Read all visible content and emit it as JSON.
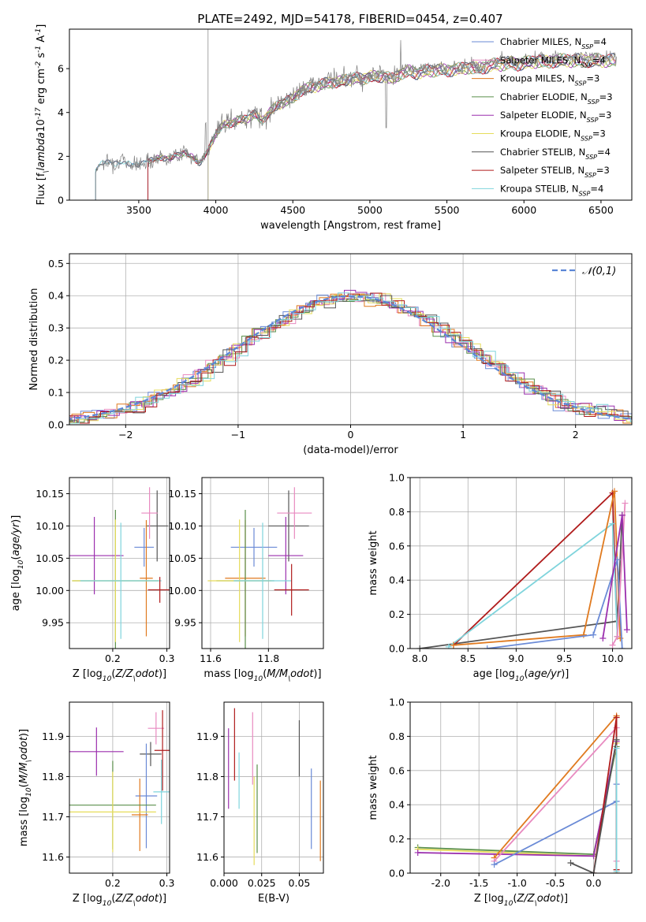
{
  "title": "PLATE=2492, MJD=54178, FIBERID=0454, z=0.407",
  "chart_data": [
    {
      "type": "line",
      "panel": "spectrum",
      "title": "PLATE=2492, MJD=54178, FIBERID=0454, z=0.407",
      "xlabel": "wavelength [Angstrom, rest frame]",
      "ylabel": "Flux [f$_\\lambda$10$^{-17}$ erg cm$^{-2}$ s$^{-1}$ A$^{-1}$]",
      "xlim": [
        3050,
        6700
      ],
      "ylim": [
        0,
        7.8
      ],
      "xticks": [
        3500,
        4000,
        4500,
        5000,
        5500,
        6000,
        6500
      ],
      "yticks": [
        0,
        2,
        4,
        6
      ],
      "legend_position": "upper-right",
      "series": [
        {
          "name": "Chabrier MILES, N$_{SSP}$=4",
          "color": "#6a8ad6"
        },
        {
          "name": "Salpeter MILES, N$_{SSP}$=4",
          "color": "#e88ac0"
        },
        {
          "name": "Kroupa MILES, N$_{SSP}$=3",
          "color": "#e07a1f"
        },
        {
          "name": "Chabrier ELODIE, N$_{SSP}$=3",
          "color": "#5a8f4a"
        },
        {
          "name": "Salpeter ELODIE, N$_{SSP}$=3",
          "color": "#9b2fae"
        },
        {
          "name": "Kroupa ELODIE, N$_{SSP}$=3",
          "color": "#e6dc5a"
        },
        {
          "name": "Chabrier STELIB, N$_{SSP}$=4",
          "color": "#555555"
        },
        {
          "name": "Salpeter STELIB, N$_{SSP}$=3",
          "color": "#b01c1c"
        },
        {
          "name": "Kroupa STELIB, N$_{SSP}$=4",
          "color": "#7fd4dc"
        }
      ],
      "data_curve": {
        "x": [
          3220,
          3240,
          3260,
          3300,
          3350,
          3400,
          3450,
          3500,
          3550,
          3600,
          3650,
          3700,
          3750,
          3800,
          3850,
          3900,
          3950,
          4000,
          4050,
          4100,
          4150,
          4200,
          4250,
          4300,
          4350,
          4400,
          4450,
          4500,
          4550,
          4600,
          4650,
          4700,
          4750,
          4800,
          4850,
          4900,
          4950,
          5000,
          5050,
          5100,
          5150,
          5200,
          5250,
          5300,
          5350,
          5400,
          5450,
          5500,
          5550,
          5600,
          5650,
          5700,
          5750,
          5800,
          5850,
          5900,
          5950,
          6000,
          6050,
          6100,
          6150,
          6200,
          6250,
          6300,
          6350,
          6400,
          6450,
          6500,
          6550,
          6600
        ],
        "y": [
          1.4,
          1.6,
          1.7,
          1.75,
          1.7,
          1.8,
          1.7,
          1.6,
          1.8,
          1.9,
          2.0,
          1.9,
          2.1,
          2.2,
          2.0,
          1.7,
          2.3,
          3.1,
          3.5,
          3.6,
          3.7,
          3.8,
          4.0,
          3.7,
          4.1,
          4.4,
          4.6,
          4.7,
          5.1,
          5.2,
          5.3,
          5.4,
          5.5,
          5.5,
          5.6,
          5.7,
          5.6,
          5.8,
          5.7,
          5.8,
          5.6,
          5.9,
          6.0,
          5.9,
          6.0,
          6.0,
          6.1,
          6.0,
          6.1,
          6.1,
          6.2,
          6.1,
          6.2,
          6.3,
          6.3,
          6.4,
          6.3,
          6.4,
          6.4,
          6.5,
          6.4,
          6.5,
          6.5,
          6.5,
          6.5,
          6.5,
          6.5,
          6.5,
          6.5,
          6.5
        ]
      }
    },
    {
      "type": "line",
      "panel": "residual-histogram",
      "xlabel": "(data-model)/error",
      "ylabel": "Normed distribution",
      "xlim": [
        -2.5,
        2.5
      ],
      "ylim": [
        0,
        0.53
      ],
      "xticks": [
        -2,
        -1,
        0,
        1,
        2
      ],
      "yticks": [
        0.0,
        0.1,
        0.2,
        0.3,
        0.4,
        0.5
      ],
      "legend": [
        "$\\mathcal{N}(0,1)$"
      ],
      "legend_position": "upper-right",
      "bin_width": 0.1,
      "reference_curve": "normal, mean 0, sigma 1"
    },
    {
      "type": "scatter",
      "panel": "age-vs-Z",
      "xlabel": "Z [log$_{10}$($Z/Z_\\odot$)]",
      "ylabel": "age  [log$_{10}$($age/yr$)]",
      "xlim": [
        0.12,
        0.305
      ],
      "ylim": [
        9.91,
        10.175
      ],
      "xticks": [
        0.2,
        0.3
      ],
      "yticks": [
        9.95,
        10.0,
        10.05,
        10.1,
        10.15
      ],
      "points": [
        {
          "color": "#555555",
          "x": 0.282,
          "y": 10.1,
          "xerr": 0.02,
          "yerr": 0.055
        },
        {
          "color": "#e88ac0",
          "x": 0.268,
          "y": 10.12,
          "xerr": 0.015,
          "yerr": 0.04
        },
        {
          "color": "#6a8ad6",
          "x": 0.258,
          "y": 10.067,
          "xerr": 0.018,
          "yerr": 0.03
        },
        {
          "color": "#9b2fae",
          "x": 0.166,
          "y": 10.054,
          "xerr": 0.054,
          "yerr": 0.06
        },
        {
          "color": "#e07a1f",
          "x": 0.262,
          "y": 10.019,
          "xerr": 0.012,
          "yerr": 0.09
        },
        {
          "color": "#5a8f4a",
          "x": 0.205,
          "y": 10.015,
          "xerr": 0.08,
          "yerr": 0.11
        },
        {
          "color": "#e6dc5a",
          "x": 0.205,
          "y": 10.015,
          "xerr": 0.08,
          "yerr": 0.095
        },
        {
          "color": "#7fd4dc",
          "x": 0.215,
          "y": 10.015,
          "xerr": 0.075,
          "yerr": 0.09
        },
        {
          "color": "#b01c1c",
          "x": 0.287,
          "y": 10.001,
          "xerr": 0.022,
          "yerr": 0.02
        }
      ]
    },
    {
      "type": "scatter",
      "panel": "age-vs-mass",
      "xlabel": "mass [log$_{10}$($M/M_\\odot$)]",
      "xlim": [
        11.57,
        11.99
      ],
      "ylim": [
        9.91,
        10.175
      ],
      "xticks": [
        11.6,
        11.8
      ],
      "yticks": [
        9.95,
        10.0,
        10.05,
        10.1,
        10.15
      ],
      "points": [
        {
          "color": "#555555",
          "x": 11.87,
          "y": 10.1,
          "xerr": 0.07,
          "yerr": 0.055
        },
        {
          "color": "#e88ac0",
          "x": 11.89,
          "y": 10.12,
          "xerr": 0.06,
          "yerr": 0.04
        },
        {
          "color": "#6a8ad6",
          "x": 11.75,
          "y": 10.067,
          "xerr": 0.08,
          "yerr": 0.03
        },
        {
          "color": "#9b2fae",
          "x": 11.86,
          "y": 10.054,
          "xerr": 0.06,
          "yerr": 0.06
        },
        {
          "color": "#e07a1f",
          "x": 11.72,
          "y": 10.019,
          "xerr": 0.07,
          "yerr": 0.09
        },
        {
          "color": "#5a8f4a",
          "x": 11.72,
          "y": 10.015,
          "xerr": 0.1,
          "yerr": 0.11
        },
        {
          "color": "#e6dc5a",
          "x": 11.7,
          "y": 10.015,
          "xerr": 0.11,
          "yerr": 0.095
        },
        {
          "color": "#7fd4dc",
          "x": 11.78,
          "y": 10.015,
          "xerr": 0.1,
          "yerr": 0.09
        },
        {
          "color": "#b01c1c",
          "x": 11.88,
          "y": 10.001,
          "xerr": 0.06,
          "yerr": 0.04
        }
      ]
    },
    {
      "type": "line",
      "panel": "mass-weight-vs-age",
      "xlabel": "age  [log$_{10}$($age/yr$)]",
      "ylabel": "mass weight",
      "xlim": [
        7.9,
        10.2
      ],
      "ylim": [
        0,
        1.0
      ],
      "xticks": [
        8.0,
        8.5,
        9.0,
        9.5,
        10.0
      ],
      "yticks": [
        0.0,
        0.2,
        0.4,
        0.6,
        0.8,
        1.0
      ],
      "series": [
        {
          "color": "#555555",
          "x": [
            8.0,
            10.05,
            10.1
          ],
          "y": [
            0.0,
            0.16,
            0.78
          ]
        },
        {
          "color": "#b01c1c",
          "x": [
            8.35,
            10.0,
            10.05
          ],
          "y": [
            0.02,
            0.91,
            0.07
          ]
        },
        {
          "color": "#7fd4dc",
          "x": [
            8.3,
            10.0,
            10.05
          ],
          "y": [
            0.01,
            0.73,
            0.07
          ]
        },
        {
          "color": "#e07a1f",
          "x": [
            8.35,
            9.7,
            10.02,
            10.08
          ],
          "y": [
            0.02,
            0.08,
            0.92,
            0.06
          ]
        },
        {
          "color": "#6a8ad6",
          "x": [
            8.7,
            9.8,
            10.05,
            10.1
          ],
          "y": [
            0.0,
            0.08,
            0.52,
            0.0
          ]
        },
        {
          "color": "#e88ac0",
          "x": [
            10.0,
            10.05,
            10.13
          ],
          "y": [
            0.02,
            0.07,
            0.85
          ]
        },
        {
          "color": "#9b2fae",
          "x": [
            9.9,
            10.1,
            10.15
          ],
          "y": [
            0.06,
            0.78,
            0.11
          ]
        }
      ]
    },
    {
      "type": "scatter",
      "panel": "mass-vs-Z",
      "xlabel": "Z [log$_{10}$($Z/Z_\\odot$)]",
      "ylabel": "mass [log$_{10}$($M/M_\\odot$)]",
      "xlim": [
        0.12,
        0.305
      ],
      "ylim": [
        11.56,
        11.985
      ],
      "xticks": [
        0.2,
        0.3
      ],
      "yticks": [
        11.6,
        11.7,
        11.8,
        11.9
      ],
      "points": [
        {
          "color": "#555555",
          "x": 0.27,
          "y": 11.856,
          "xerr": 0.02,
          "yerr": 0.03
        },
        {
          "color": "#e88ac0",
          "x": 0.28,
          "y": 11.92,
          "xerr": 0.015,
          "yerr": 0.04
        },
        {
          "color": "#6a8ad6",
          "x": 0.262,
          "y": 11.752,
          "xerr": 0.02,
          "yerr": 0.13
        },
        {
          "color": "#9b2fae",
          "x": 0.17,
          "y": 11.862,
          "xerr": 0.05,
          "yerr": 0.06
        },
        {
          "color": "#e07a1f",
          "x": 0.25,
          "y": 11.705,
          "xerr": 0.015,
          "yerr": 0.09
        },
        {
          "color": "#5a8f4a",
          "x": 0.2,
          "y": 11.729,
          "xerr": 0.08,
          "yerr": 0.11
        },
        {
          "color": "#e6dc5a",
          "x": 0.2,
          "y": 11.712,
          "xerr": 0.08,
          "yerr": 0.1
        },
        {
          "color": "#7fd4dc",
          "x": 0.29,
          "y": 11.762,
          "xerr": 0.015,
          "yerr": 0.08
        },
        {
          "color": "#b01c1c",
          "x": 0.292,
          "y": 11.865,
          "xerr": 0.015,
          "yerr": 0.1
        }
      ]
    },
    {
      "type": "scatter",
      "panel": "mass-vs-EBV",
      "xlabel": "E(B-V)",
      "xlim": [
        0.0,
        0.066
      ],
      "ylim": [
        11.56,
        11.985
      ],
      "xticks": [
        0.0,
        0.025,
        0.05
      ],
      "yticks": [
        11.6,
        11.7,
        11.8,
        11.9
      ],
      "points": [
        {
          "color": "#9b2fae",
          "x": 0.003,
          "y": 11.82,
          "yerr": 0.1
        },
        {
          "color": "#b01c1c",
          "x": 0.007,
          "y": 11.88,
          "yerr": 0.09
        },
        {
          "color": "#e88ac0",
          "x": 0.019,
          "y": 11.87,
          "yerr": 0.09
        },
        {
          "color": "#7fd4dc",
          "x": 0.01,
          "y": 11.79,
          "yerr": 0.07
        },
        {
          "color": "#e6dc5a",
          "x": 0.02,
          "y": 11.69,
          "yerr": 0.11
        },
        {
          "color": "#5a8f4a",
          "x": 0.022,
          "y": 11.72,
          "yerr": 0.11
        },
        {
          "color": "#555555",
          "x": 0.05,
          "y": 11.87,
          "yerr": 0.07
        },
        {
          "color": "#6a8ad6",
          "x": 0.058,
          "y": 11.72,
          "yerr": 0.1
        },
        {
          "color": "#e07a1f",
          "x": 0.064,
          "y": 11.69,
          "yerr": 0.1
        }
      ]
    },
    {
      "type": "line",
      "panel": "mass-weight-vs-Z",
      "xlabel": "Z [log$_{10}$($Z/Z_\\odot$)]",
      "ylabel": "mass weight",
      "xlim": [
        -2.4,
        0.5
      ],
      "ylim": [
        0,
        1.0
      ],
      "xticks": [
        -2.0,
        -1.5,
        -1.0,
        -0.5,
        0.0
      ],
      "yticks": [
        0.0,
        0.2,
        0.4,
        0.6,
        0.8,
        1.0
      ],
      "series": [
        {
          "color": "#5a8f4a",
          "x": [
            -2.3,
            0.0,
            0.3
          ],
          "y": [
            0.15,
            0.11,
            0.74
          ]
        },
        {
          "color": "#e6dc5a",
          "x": [
            -2.3,
            0.0,
            0.3
          ],
          "y": [
            0.14,
            0.1,
            0.76
          ]
        },
        {
          "color": "#9b2fae",
          "x": [
            -2.3,
            0.0,
            0.3
          ],
          "y": [
            0.12,
            0.1,
            0.77
          ]
        },
        {
          "color": "#e07a1f",
          "x": [
            -1.3,
            0.3,
            0.3
          ],
          "y": [
            0.09,
            0.92,
            0.0
          ]
        },
        {
          "color": "#e88ac0",
          "x": [
            -1.3,
            0.3,
            0.3
          ],
          "y": [
            0.07,
            0.85,
            0.07
          ]
        },
        {
          "color": "#6a8ad6",
          "x": [
            -1.3,
            0.3,
            0.3
          ],
          "y": [
            0.05,
            0.42,
            0.52
          ]
        },
        {
          "color": "#b01c1c",
          "x": [
            0.0,
            0.3,
            0.3
          ],
          "y": [
            0.0,
            0.91,
            0.02
          ]
        },
        {
          "color": "#555555",
          "x": [
            -0.3,
            0.0,
            0.3
          ],
          "y": [
            0.06,
            0.0,
            0.78
          ]
        },
        {
          "color": "#7fd4dc",
          "x": [
            0.3,
            0.3
          ],
          "y": [
            0.73,
            0.01
          ]
        }
      ]
    }
  ]
}
